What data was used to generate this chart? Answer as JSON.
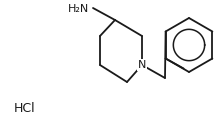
{
  "background_color": "#ffffff",
  "line_color": "#1a1a1a",
  "text_color": "#1a1a1a",
  "line_width": 1.3,
  "figsize": [
    2.24,
    1.2
  ],
  "dpi": 100,
  "hcl_text": "HCl",
  "n_text": "N",
  "nh2_text": "H₂N"
}
